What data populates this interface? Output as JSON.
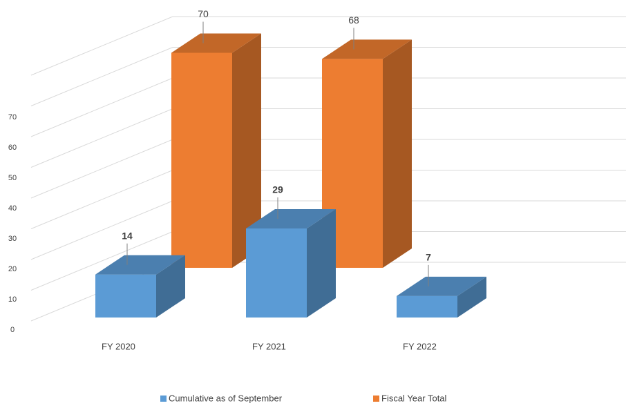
{
  "chart_data": {
    "type": "bar3d",
    "categories": [
      "FY 2020",
      "FY 2021",
      "FY 2022"
    ],
    "series": [
      {
        "name": "Cumulative as of September",
        "color": "#5b9bd5",
        "values": [
          14,
          29,
          7
        ]
      },
      {
        "name": "Fiscal Year Total",
        "color": "#ed7d31",
        "values": [
          70,
          68,
          null
        ]
      }
    ],
    "ylim": [
      0,
      80
    ],
    "yticks": [
      0,
      10,
      20,
      30,
      40,
      50,
      60,
      70
    ],
    "grid": true,
    "legend": "bottom"
  }
}
